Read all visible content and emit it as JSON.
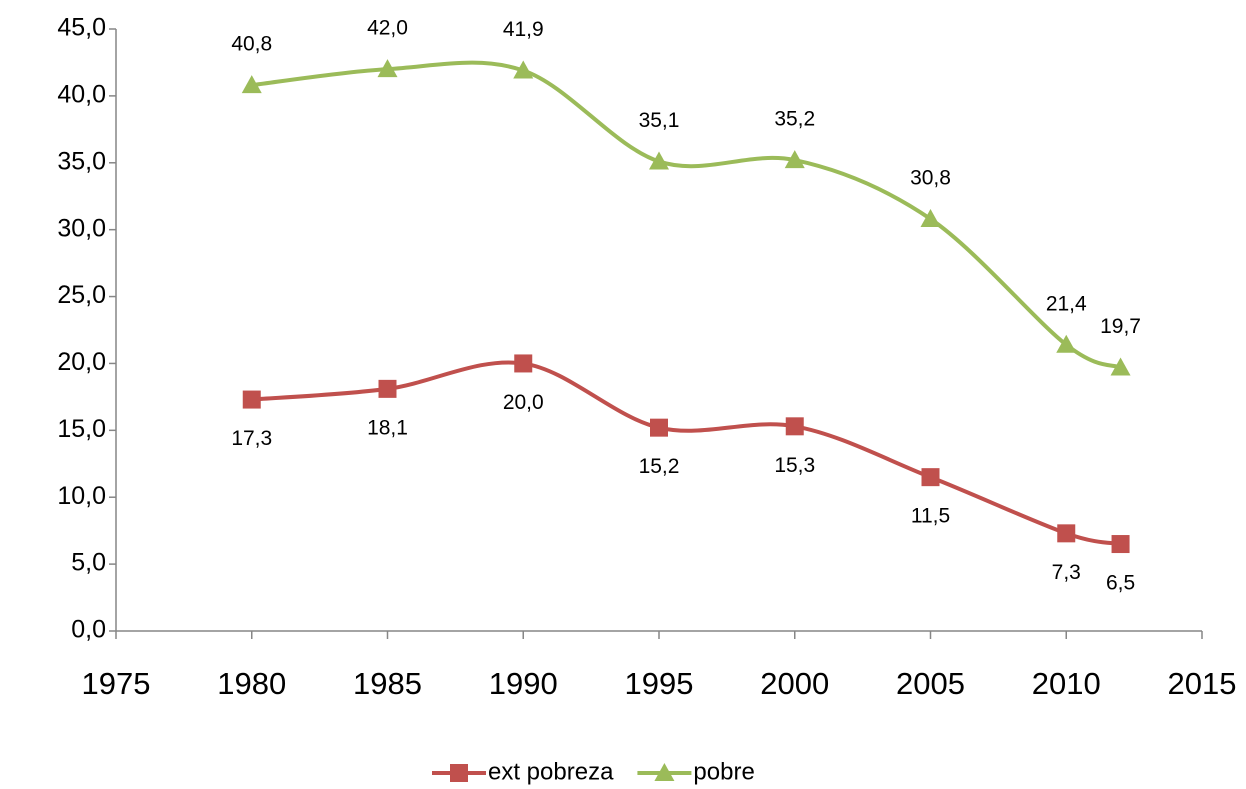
{
  "chart_data": {
    "type": "line",
    "x": [
      1980,
      1985,
      1990,
      1995,
      2000,
      2005,
      2010,
      2012
    ],
    "series": [
      {
        "name": "ext pobreza",
        "color": "#c0504d",
        "marker": "square",
        "values": [
          17.3,
          18.1,
          20.0,
          15.2,
          15.3,
          11.5,
          7.3,
          6.5
        ],
        "value_labels": [
          "17,3",
          "18,1",
          "20,0",
          "15,2",
          "15,3",
          "11,5",
          "7,3",
          "6,5"
        ]
      },
      {
        "name": "pobre",
        "color": "#9bbb59",
        "marker": "triangle",
        "values": [
          40.8,
          42.0,
          41.9,
          35.1,
          35.2,
          30.8,
          21.4,
          19.7
        ],
        "value_labels": [
          "40,8",
          "42,0",
          "41,9",
          "35,1",
          "35,2",
          "30,8",
          "21,4",
          "19,7"
        ]
      }
    ],
    "xlim": [
      1975,
      2015
    ],
    "xticks": [
      1975,
      1980,
      1985,
      1990,
      1995,
      2000,
      2005,
      2010,
      2015
    ],
    "ylim": [
      0,
      45
    ],
    "yticks": [
      {
        "value": 0,
        "label": "0,0"
      },
      {
        "value": 5,
        "label": "5,0"
      },
      {
        "value": 10,
        "label": "10,0"
      },
      {
        "value": 15,
        "label": "15,0"
      },
      {
        "value": 20,
        "label": "20,0"
      },
      {
        "value": 25,
        "label": "25,0"
      },
      {
        "value": 30,
        "label": "30,0"
      },
      {
        "value": 35,
        "label": "35,0"
      },
      {
        "value": 40,
        "label": "40,0"
      },
      {
        "value": 45,
        "label": "45,0"
      }
    ],
    "smooth": true,
    "legend": "bottom"
  }
}
